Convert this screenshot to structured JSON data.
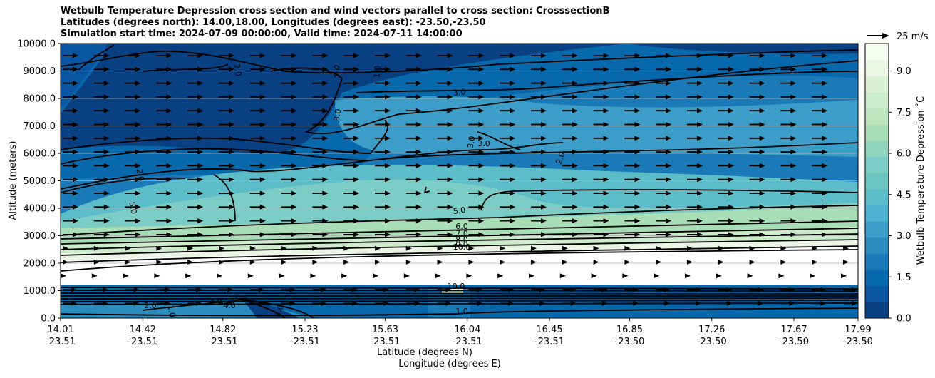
{
  "chart_data": {
    "type": "heatmap",
    "title": [
      "Wetbulb Temperature Depression cross section and wind vectors parallel to cross section: CrosssectionB",
      "Latitudes (degrees north): 14.00,18.00, Longitudes (degrees east): -23.50,-23.50",
      "Simulation start time: 2024-07-09 00:00:00, Valid time: 2024-07-11 14:00:00"
    ],
    "xlabel": "Latitude (degrees N)",
    "xlabel2": "Longitude (degrees E)",
    "ylabel": "Altitude (meters)",
    "x_ticks": [
      {
        "lat": "14.01",
        "lon": "-23.51"
      },
      {
        "lat": "14.42",
        "lon": "-23.51"
      },
      {
        "lat": "14.82",
        "lon": "-23.51"
      },
      {
        "lat": "15.23",
        "lon": "-23.51"
      },
      {
        "lat": "15.63",
        "lon": "-23.51"
      },
      {
        "lat": "16.04",
        "lon": "-23.51"
      },
      {
        "lat": "16.45",
        "lon": "-23.51"
      },
      {
        "lat": "16.85",
        "lon": "-23.50"
      },
      {
        "lat": "17.26",
        "lon": "-23.50"
      },
      {
        "lat": "17.67",
        "lon": "-23.50"
      },
      {
        "lat": "17.99",
        "lon": "-23.50"
      }
    ],
    "y_ticks": [
      "0.0",
      "1000.0",
      "2000.0",
      "3000.0",
      "4000.0",
      "5000.0",
      "6000.0",
      "7000.0",
      "8000.0",
      "9000.0",
      "10000.0"
    ],
    "ylim": [
      0,
      10000
    ],
    "grid": "horizontal",
    "colorbar": {
      "label": "Wetbulb Temperature Depression ˚C",
      "ticks": [
        "0.0",
        "1.5",
        "3.0",
        "4.5",
        "6.0",
        "7.5",
        "9.0"
      ],
      "range": [
        0,
        10
      ],
      "colors": [
        "#084081",
        "#0a55a0",
        "#0868ac",
        "#1a7ab8",
        "#2b8cbe",
        "#3c9ec8",
        "#4eb3d3",
        "#5cbdc9",
        "#6cc5c0",
        "#7bccc4",
        "#8fd4bd",
        "#a8ddb5",
        "#bde5bf",
        "#cceccb",
        "#dbf1d5",
        "#ebf7e4",
        "#f7fcf0"
      ]
    },
    "wind_key": {
      "label": "25 m/s",
      "speed": 25
    },
    "contour_labels": [
      "2.0",
      "2.0",
      "1.0",
      "3.0",
      "3.0",
      "3.0",
      "3.0",
      "2.0",
      "2.0",
      "5.0",
      "5.0",
      "6.0",
      "7.0",
      "8.0",
      "9.0",
      "10.0",
      "10.0",
      "1.0",
      "2.0",
      "4.0",
      "4.0",
      "1.0",
      "3.0"
    ]
  }
}
